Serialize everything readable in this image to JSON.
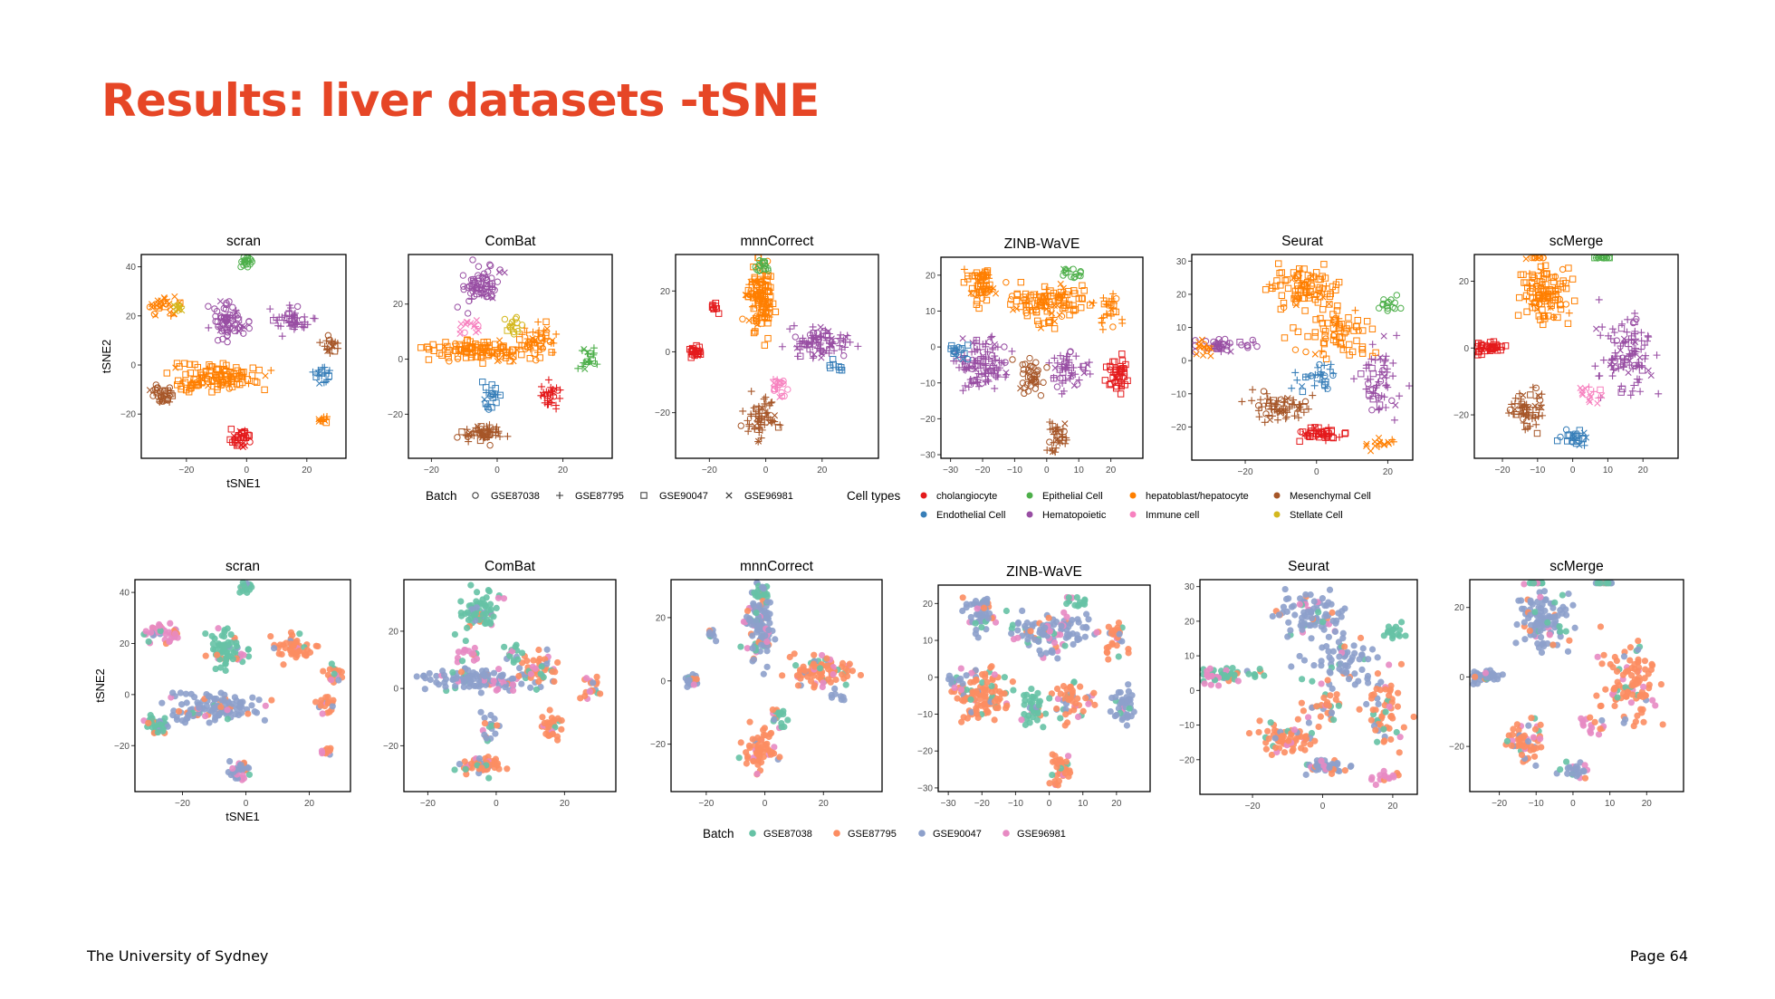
{
  "slide": {
    "title": "Results: liver datasets -tSNE",
    "footer_left": "The University of Sydney",
    "footer_right": "Page 64",
    "title_color": "#E64626"
  },
  "legends": {
    "batch_title": "Batch",
    "batches": [
      "GSE87038",
      "GSE87795",
      "GSE90047",
      "GSE96981"
    ],
    "batch_symbols": [
      "circle",
      "plus",
      "square",
      "cross"
    ],
    "batch_colors": [
      "#66C2A5",
      "#FC8D62",
      "#8DA0CB",
      "#E78AC3"
    ],
    "celltype_title": "Cell types",
    "celltypes": [
      "cholangiocyte",
      "Epithelial Cell",
      "hepatoblast/hepatocyte",
      "Mesenchymal Cell",
      "Endothelial Cell",
      "Hematopoietic",
      "Immune cell",
      "Stellate Cell"
    ],
    "celltype_colors": [
      "#E41A1C",
      "#4DAF4A",
      "#FF7F00",
      "#A65628",
      "#377EB8",
      "#984EA3",
      "#F781BF",
      "#D4B81F"
    ]
  },
  "chart_data": [
    {
      "type": "scatter",
      "title": "scran",
      "xlabel": "tSNE1",
      "ylabel": "tSNE2",
      "color_by": "cell type",
      "shape_by": "batch",
      "xlim": [
        -35,
        33
      ],
      "ylim": [
        -38,
        45
      ],
      "xticks": [
        -20,
        0,
        20
      ],
      "yticks": [
        -20,
        0,
        20,
        40
      ]
    },
    {
      "type": "scatter",
      "title": "ComBat",
      "xlabel": "",
      "ylabel": "",
      "color_by": "cell type",
      "shape_by": "batch",
      "xlim": [
        -27,
        35
      ],
      "ylim": [
        -36,
        38
      ],
      "xticks": [
        -20,
        0,
        20
      ],
      "yticks": [
        -20,
        0,
        20
      ]
    },
    {
      "type": "scatter",
      "title": "mnnCorrect",
      "xlabel": "",
      "ylabel": "",
      "color_by": "cell type",
      "shape_by": "batch",
      "xlim": [
        -32,
        40
      ],
      "ylim": [
        -35,
        32
      ],
      "xticks": [
        -20,
        0,
        20
      ],
      "yticks": [
        -20,
        0,
        20
      ]
    },
    {
      "type": "scatter",
      "title": "ZINB-WaVE",
      "xlabel": "",
      "ylabel": "",
      "color_by": "cell type",
      "shape_by": "batch",
      "xlim": [
        -33,
        30
      ],
      "ylim": [
        -31,
        25
      ],
      "xticks": [
        -30,
        -20,
        -10,
        0,
        10,
        20
      ],
      "yticks": [
        -30,
        -20,
        -10,
        0,
        10,
        20
      ]
    },
    {
      "type": "scatter",
      "title": "Seurat",
      "xlabel": "",
      "ylabel": "",
      "color_by": "cell type",
      "shape_by": "batch",
      "xlim": [
        -35,
        27
      ],
      "ylim": [
        -30,
        32
      ],
      "xticks": [
        -20,
        0,
        20
      ],
      "yticks": [
        -20,
        -10,
        0,
        10,
        20,
        30
      ]
    },
    {
      "type": "scatter",
      "title": "scMerge",
      "xlabel": "",
      "ylabel": "",
      "color_by": "cell type",
      "shape_by": "batch",
      "xlim": [
        -28,
        30
      ],
      "ylim": [
        -33,
        28
      ],
      "xticks": [
        -20,
        -10,
        0,
        10,
        20
      ],
      "yticks": [
        -20,
        0,
        20
      ]
    },
    {
      "type": "scatter",
      "title": "scran",
      "xlabel": "tSNE1",
      "ylabel": "tSNE2",
      "color_by": "batch",
      "xlim": [
        -35,
        33
      ],
      "ylim": [
        -38,
        45
      ],
      "xticks": [
        -20,
        0,
        20
      ],
      "yticks": [
        -20,
        0,
        20,
        40
      ]
    },
    {
      "type": "scatter",
      "title": "ComBat",
      "xlabel": "",
      "ylabel": "",
      "color_by": "batch",
      "xlim": [
        -27,
        35
      ],
      "ylim": [
        -36,
        38
      ],
      "xticks": [
        -20,
        0,
        20
      ],
      "yticks": [
        -20,
        0,
        20
      ]
    },
    {
      "type": "scatter",
      "title": "mnnCorrect",
      "xlabel": "",
      "ylabel": "",
      "color_by": "batch",
      "xlim": [
        -32,
        40
      ],
      "ylim": [
        -35,
        32
      ],
      "xticks": [
        -20,
        0,
        20
      ],
      "yticks": [
        -20,
        0,
        20
      ]
    },
    {
      "type": "scatter",
      "title": "ZINB-WaVE",
      "xlabel": "",
      "ylabel": "",
      "color_by": "batch",
      "xlim": [
        -33,
        30
      ],
      "ylim": [
        -31,
        25
      ],
      "xticks": [
        -30,
        -20,
        -10,
        0,
        10,
        20
      ],
      "yticks": [
        -30,
        -20,
        -10,
        0,
        10,
        20
      ]
    },
    {
      "type": "scatter",
      "title": "Seurat",
      "xlabel": "",
      "ylabel": "",
      "color_by": "batch",
      "xlim": [
        -35,
        27
      ],
      "ylim": [
        -30,
        32
      ],
      "xticks": [
        -20,
        0,
        20
      ],
      "yticks": [
        -20,
        -10,
        0,
        10,
        20,
        30
      ]
    },
    {
      "type": "scatter",
      "title": "scMerge",
      "xlabel": "",
      "ylabel": "",
      "color_by": "batch",
      "xlim": [
        -28,
        30
      ],
      "ylim": [
        -33,
        28
      ],
      "xticks": [
        -20,
        -10,
        0,
        10,
        20
      ],
      "yticks": [
        -20,
        0,
        20
      ]
    }
  ]
}
